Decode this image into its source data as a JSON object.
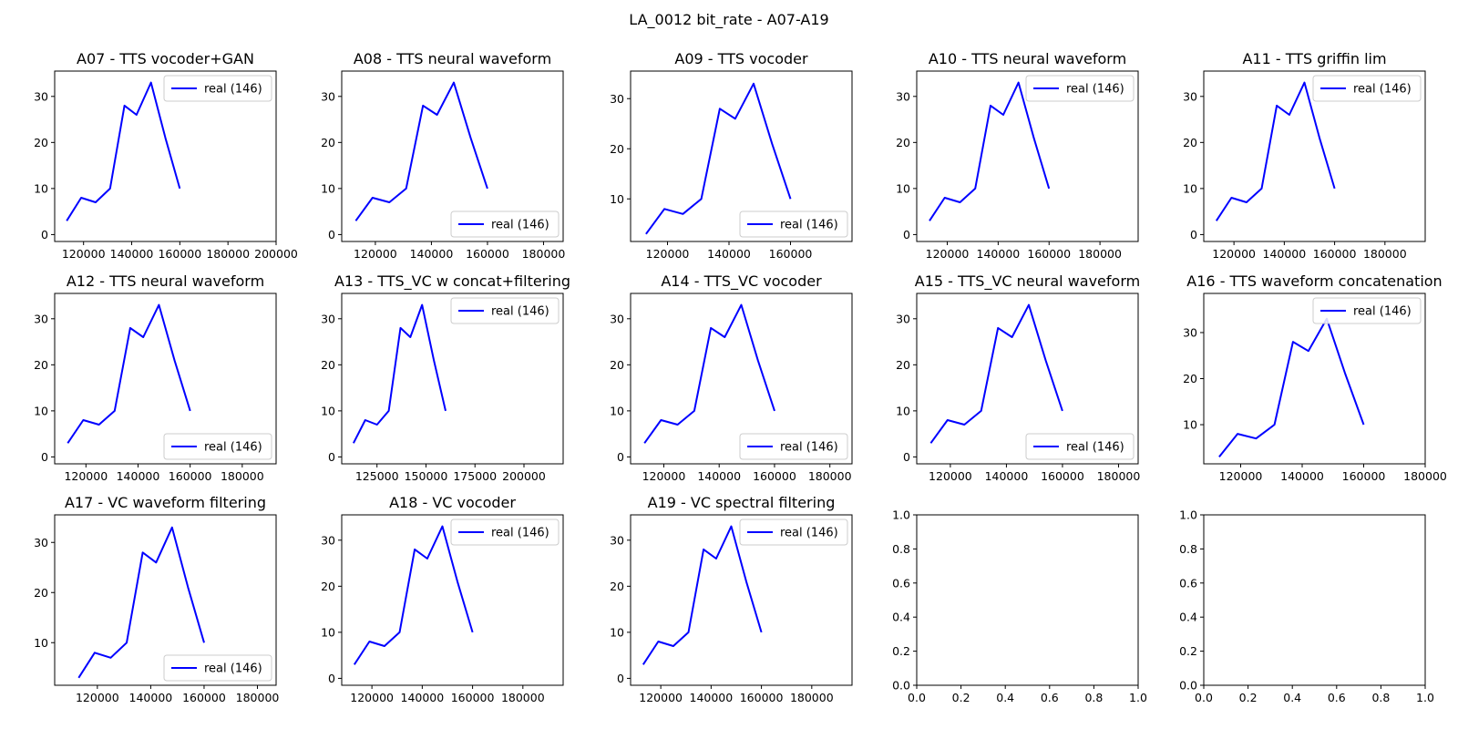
{
  "figure": {
    "title": "LA_0012 bit_rate - A07-A19"
  },
  "chart_data": [
    {
      "type": "line",
      "title": "A07 - TTS vocoder+GAN",
      "xlim": [
        108000,
        200000
      ],
      "ylim": [
        -1.5,
        35.5
      ],
      "xticks": [
        120000,
        140000,
        160000,
        180000,
        200000
      ],
      "yticks": [
        0,
        10,
        20,
        30
      ],
      "legend": "top-right",
      "series": [
        {
          "name": "real (146)",
          "color": "#0000ff",
          "x": [
            113000,
            119000,
            125000,
            131000,
            137000,
            142000,
            148000,
            154000,
            160000
          ],
          "y": [
            3,
            8,
            7,
            10,
            28,
            26,
            33,
            21,
            10
          ]
        }
      ]
    },
    {
      "type": "line",
      "title": "A08 - TTS neural waveform",
      "xlim": [
        108000,
        187000
      ],
      "ylim": [
        -1.5,
        35.5
      ],
      "xticks": [
        120000,
        140000,
        160000,
        180000
      ],
      "yticks": [
        0,
        10,
        20,
        30
      ],
      "legend": "bottom-right",
      "series": [
        {
          "name": "real (146)",
          "color": "#0000ff",
          "x": [
            113000,
            119000,
            125000,
            131000,
            137000,
            142000,
            148000,
            154000,
            160000
          ],
          "y": [
            3,
            8,
            7,
            10,
            28,
            26,
            33,
            21,
            10
          ]
        }
      ]
    },
    {
      "type": "line",
      "title": "A09 - TTS vocoder",
      "xlim": [
        108000,
        180000
      ],
      "ylim": [
        1.5,
        35.5
      ],
      "xticks": [
        120000,
        140000,
        160000
      ],
      "yticks": [
        10,
        20,
        30
      ],
      "legend": "bottom-right",
      "series": [
        {
          "name": "real (146)",
          "color": "#0000ff",
          "x": [
            113000,
            119000,
            125000,
            131000,
            137000,
            142000,
            148000,
            154000,
            160000
          ],
          "y": [
            3,
            8,
            7,
            10,
            28,
            26,
            33,
            21,
            10
          ]
        }
      ]
    },
    {
      "type": "line",
      "title": "A10 - TTS neural waveform",
      "xlim": [
        108000,
        195000
      ],
      "ylim": [
        -1.5,
        35.5
      ],
      "xticks": [
        120000,
        140000,
        160000,
        180000
      ],
      "yticks": [
        0,
        10,
        20,
        30
      ],
      "legend": "top-right",
      "series": [
        {
          "name": "real (146)",
          "color": "#0000ff",
          "x": [
            113000,
            119000,
            125000,
            131000,
            137000,
            142000,
            148000,
            154000,
            160000
          ],
          "y": [
            3,
            8,
            7,
            10,
            28,
            26,
            33,
            21,
            10
          ]
        }
      ]
    },
    {
      "type": "line",
      "title": "A11 - TTS griffin lim",
      "xlim": [
        108000,
        196000
      ],
      "ylim": [
        -1.5,
        35.5
      ],
      "xticks": [
        120000,
        140000,
        160000,
        180000
      ],
      "yticks": [
        0,
        10,
        20,
        30
      ],
      "legend": "top-right",
      "series": [
        {
          "name": "real (146)",
          "color": "#0000ff",
          "x": [
            113000,
            119000,
            125000,
            131000,
            137000,
            142000,
            148000,
            154000,
            160000
          ],
          "y": [
            3,
            8,
            7,
            10,
            28,
            26,
            33,
            21,
            10
          ]
        }
      ]
    },
    {
      "type": "line",
      "title": "A12 - TTS neural waveform",
      "xlim": [
        108000,
        193000
      ],
      "ylim": [
        -1.5,
        35.5
      ],
      "xticks": [
        120000,
        140000,
        160000,
        180000
      ],
      "yticks": [
        0,
        10,
        20,
        30
      ],
      "legend": "bottom-right",
      "series": [
        {
          "name": "real (146)",
          "color": "#0000ff",
          "x": [
            113000,
            119000,
            125000,
            131000,
            137000,
            142000,
            148000,
            154000,
            160000
          ],
          "y": [
            3,
            8,
            7,
            10,
            28,
            26,
            33,
            21,
            10
          ]
        }
      ]
    },
    {
      "type": "line",
      "title": "A13 - TTS_VC w concat+filtering",
      "xlim": [
        107000,
        220000
      ],
      "ylim": [
        -1.5,
        35.5
      ],
      "xticks": [
        125000,
        150000,
        175000,
        200000
      ],
      "yticks": [
        0,
        10,
        20,
        30
      ],
      "legend": "top-right",
      "series": [
        {
          "name": "real (146)",
          "color": "#0000ff",
          "x": [
            113000,
            119000,
            125000,
            131000,
            137000,
            142000,
            148000,
            154000,
            160000
          ],
          "y": [
            3,
            8,
            7,
            10,
            28,
            26,
            33,
            21,
            10
          ]
        }
      ]
    },
    {
      "type": "line",
      "title": "A14 - TTS_VC vocoder",
      "xlim": [
        108000,
        188000
      ],
      "ylim": [
        -1.5,
        35.5
      ],
      "xticks": [
        120000,
        140000,
        160000,
        180000
      ],
      "yticks": [
        0,
        10,
        20,
        30
      ],
      "legend": "bottom-right",
      "series": [
        {
          "name": "real (146)",
          "color": "#0000ff",
          "x": [
            113000,
            119000,
            125000,
            131000,
            137000,
            142000,
            148000,
            154000,
            160000
          ],
          "y": [
            3,
            8,
            7,
            10,
            28,
            26,
            33,
            21,
            10
          ]
        }
      ]
    },
    {
      "type": "line",
      "title": "A15 - TTS_VC neural waveform",
      "xlim": [
        108000,
        187000
      ],
      "ylim": [
        -1.5,
        35.5
      ],
      "xticks": [
        120000,
        140000,
        160000,
        180000
      ],
      "yticks": [
        0,
        10,
        20,
        30
      ],
      "legend": "bottom-right",
      "series": [
        {
          "name": "real (146)",
          "color": "#0000ff",
          "x": [
            113000,
            119000,
            125000,
            131000,
            137000,
            142000,
            148000,
            154000,
            160000
          ],
          "y": [
            3,
            8,
            7,
            10,
            28,
            26,
            33,
            21,
            10
          ]
        }
      ]
    },
    {
      "type": "line",
      "title": "A16 - TTS waveform concatenation",
      "xlim": [
        108000,
        180000
      ],
      "ylim": [
        1.5,
        38.5
      ],
      "xticks": [
        120000,
        140000,
        160000,
        180000
      ],
      "yticks": [
        10,
        20,
        30
      ],
      "legend": "top-right",
      "series": [
        {
          "name": "real (146)",
          "color": "#0000ff",
          "x": [
            113000,
            119000,
            125000,
            131000,
            137000,
            142000,
            148000,
            154000,
            160000
          ],
          "y": [
            3,
            8,
            7,
            10,
            28,
            26,
            33,
            21,
            10
          ]
        }
      ]
    },
    {
      "type": "line",
      "title": "A17 - VC waveform filtering",
      "xlim": [
        104000,
        187000
      ],
      "ylim": [
        1.5,
        35.5
      ],
      "xticks": [
        120000,
        140000,
        160000,
        180000
      ],
      "yticks": [
        10,
        20,
        30
      ],
      "legend": "bottom-right",
      "series": [
        {
          "name": "real (146)",
          "color": "#0000ff",
          "x": [
            113000,
            119000,
            125000,
            131000,
            137000,
            142000,
            148000,
            154000,
            160000
          ],
          "y": [
            3,
            8,
            7,
            10,
            28,
            26,
            33,
            21,
            10
          ]
        }
      ]
    },
    {
      "type": "line",
      "title": "A18 - VC vocoder",
      "xlim": [
        108000,
        196000
      ],
      "ylim": [
        -1.5,
        35.5
      ],
      "xticks": [
        120000,
        140000,
        160000,
        180000
      ],
      "yticks": [
        0,
        10,
        20,
        30
      ],
      "legend": "top-right",
      "series": [
        {
          "name": "real (146)",
          "color": "#0000ff",
          "x": [
            113000,
            119000,
            125000,
            131000,
            137000,
            142000,
            148000,
            154000,
            160000
          ],
          "y": [
            3,
            8,
            7,
            10,
            28,
            26,
            33,
            21,
            10
          ]
        }
      ]
    },
    {
      "type": "line",
      "title": "A19 - VC spectral filtering",
      "xlim": [
        108000,
        196000
      ],
      "ylim": [
        -1.5,
        35.5
      ],
      "xticks": [
        120000,
        140000,
        160000,
        180000
      ],
      "yticks": [
        0,
        10,
        20,
        30
      ],
      "legend": "top-right",
      "series": [
        {
          "name": "real (146)",
          "color": "#0000ff",
          "x": [
            113000,
            119000,
            125000,
            131000,
            137000,
            142000,
            148000,
            154000,
            160000
          ],
          "y": [
            3,
            8,
            7,
            10,
            28,
            26,
            33,
            21,
            10
          ]
        }
      ]
    },
    {
      "type": "line",
      "title": "",
      "empty": true,
      "xlim": [
        0,
        1
      ],
      "ylim": [
        0,
        1
      ],
      "xticks": [
        0.0,
        0.2,
        0.4,
        0.6,
        0.8,
        1.0
      ],
      "yticks": [
        0.0,
        0.2,
        0.4,
        0.6,
        0.8,
        1.0
      ],
      "xtick_labels": [
        "0.0",
        "0.2",
        "0.4",
        "0.6",
        "0.8",
        "1.0"
      ],
      "ytick_labels": [
        "0.0",
        "0.2",
        "0.4",
        "0.6",
        "0.8",
        "1.0"
      ],
      "series": []
    },
    {
      "type": "line",
      "title": "",
      "empty": true,
      "xlim": [
        0,
        1
      ],
      "ylim": [
        0,
        1
      ],
      "xticks": [
        0.0,
        0.2,
        0.4,
        0.6,
        0.8,
        1.0
      ],
      "yticks": [
        0.0,
        0.2,
        0.4,
        0.6,
        0.8,
        1.0
      ],
      "xtick_labels": [
        "0.0",
        "0.2",
        "0.4",
        "0.6",
        "0.8",
        "1.0"
      ],
      "ytick_labels": [
        "0.0",
        "0.2",
        "0.4",
        "0.6",
        "0.8",
        "1.0"
      ],
      "series": []
    }
  ]
}
